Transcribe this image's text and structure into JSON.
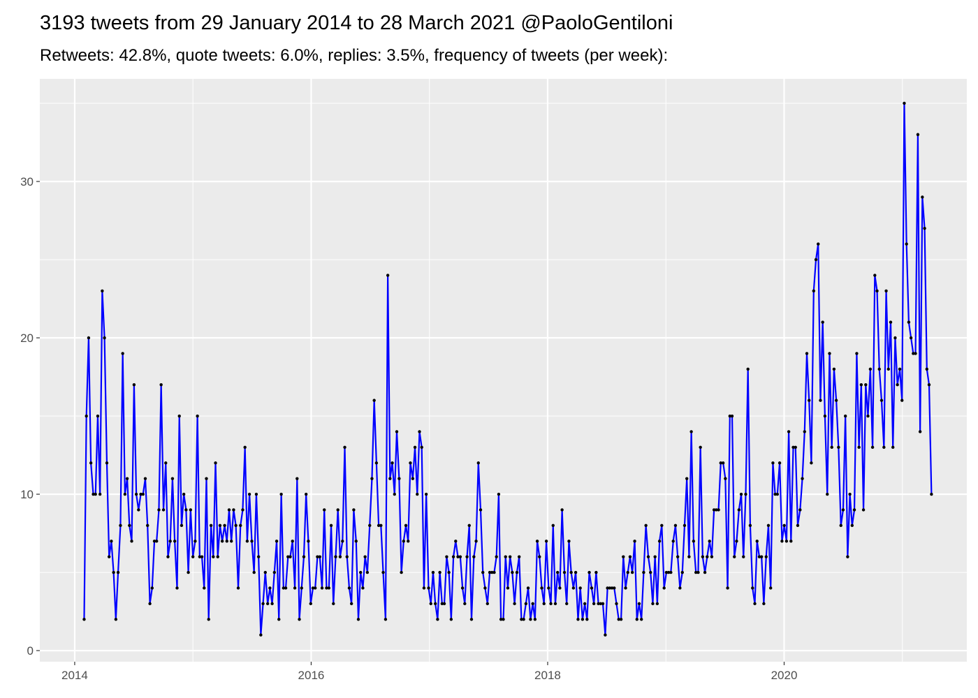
{
  "chart_data": {
    "type": "line",
    "title": "3193 tweets from 29 January 2014 to 28 March 2021 @PaoloGentiloni",
    "subtitle": "Retweets: 42.8%, quote tweets: 6.0%, replies: 3.5%, frequency of tweets (per week):",
    "color": "#0000ff",
    "point_color": "#000000",
    "grid": true,
    "xlim": [
      2013.705,
      2021.545
    ],
    "xticks": [
      2014,
      2016,
      2018,
      2020
    ],
    "minor_xticks": [
      2015,
      2017,
      2019,
      2021
    ],
    "ylim": [
      -0.71,
      36.56
    ],
    "yticks": [
      0,
      10,
      20,
      30
    ],
    "minor_yticks": [
      5,
      15,
      25,
      35
    ],
    "x": [
      2014.08,
      2014.099,
      2014.118,
      2014.137,
      2014.157,
      2014.176,
      2014.195,
      2014.214,
      2014.233,
      2014.252,
      2014.272,
      2014.291,
      2014.31,
      2014.329,
      2014.348,
      2014.367,
      2014.387,
      2014.406,
      2014.425,
      2014.444,
      2014.463,
      2014.482,
      2014.502,
      2014.521,
      2014.54,
      2014.559,
      2014.578,
      2014.597,
      2014.616,
      2014.636,
      2014.655,
      2014.674,
      2014.693,
      2014.712,
      2014.731,
      2014.751,
      2014.77,
      2014.789,
      2014.808,
      2014.827,
      2014.846,
      2014.866,
      2014.885,
      2014.904,
      2014.923,
      2014.942,
      2014.961,
      2014.98,
      2015.0,
      2015.019,
      2015.038,
      2015.057,
      2015.076,
      2015.095,
      2015.114,
      2015.133,
      2015.153,
      2015.172,
      2015.191,
      2015.21,
      2015.229,
      2015.248,
      2015.268,
      2015.287,
      2015.306,
      2015.325,
      2015.344,
      2015.363,
      2015.383,
      2015.402,
      2015.421,
      2015.44,
      2015.459,
      2015.478,
      2015.498,
      2015.517,
      2015.536,
      2015.555,
      2015.574,
      2015.593,
      2015.612,
      2015.632,
      2015.651,
      2015.67,
      2015.689,
      2015.708,
      2015.727,
      2015.747,
      2015.766,
      2015.785,
      2015.804,
      2015.823,
      2015.842,
      2015.862,
      2015.881,
      2015.9,
      2015.919,
      2015.938,
      2015.957,
      2015.976,
      2015.996,
      2016.015,
      2016.034,
      2016.053,
      2016.073,
      2016.092,
      2016.111,
      2016.13,
      2016.15,
      2016.169,
      2016.188,
      2016.207,
      2016.226,
      2016.245,
      2016.265,
      2016.284,
      2016.303,
      2016.322,
      2016.341,
      2016.36,
      2016.38,
      2016.399,
      2016.418,
      2016.437,
      2016.456,
      2016.475,
      2016.495,
      2016.514,
      2016.533,
      2016.552,
      2016.571,
      2016.59,
      2016.609,
      2016.629,
      2016.648,
      2016.667,
      2016.686,
      2016.705,
      2016.724,
      2016.744,
      2016.763,
      2016.782,
      2016.801,
      2016.82,
      2016.839,
      2016.859,
      2016.878,
      2016.897,
      2016.916,
      2016.935,
      2016.954,
      2016.973,
      2016.993,
      2017.012,
      2017.031,
      2017.05,
      2017.069,
      2017.088,
      2017.107,
      2017.126,
      2017.146,
      2017.165,
      2017.184,
      2017.203,
      2017.222,
      2017.241,
      2017.261,
      2017.28,
      2017.299,
      2017.318,
      2017.337,
      2017.356,
      2017.376,
      2017.395,
      2017.414,
      2017.433,
      2017.452,
      2017.471,
      2017.491,
      2017.51,
      2017.529,
      2017.548,
      2017.567,
      2017.586,
      2017.605,
      2017.625,
      2017.644,
      2017.663,
      2017.682,
      2017.701,
      2017.72,
      2017.74,
      2017.759,
      2017.778,
      2017.797,
      2017.816,
      2017.835,
      2017.855,
      2017.874,
      2017.893,
      2017.912,
      2017.931,
      2017.95,
      2017.969,
      2017.989,
      2018.008,
      2018.027,
      2018.046,
      2018.065,
      2018.084,
      2018.103,
      2018.122,
      2018.142,
      2018.161,
      2018.18,
      2018.199,
      2018.218,
      2018.237,
      2018.257,
      2018.276,
      2018.295,
      2018.314,
      2018.333,
      2018.352,
      2018.372,
      2018.391,
      2018.41,
      2018.429,
      2018.448,
      2018.467,
      2018.487,
      2018.506,
      2018.525,
      2018.544,
      2018.563,
      2018.582,
      2018.601,
      2018.621,
      2018.64,
      2018.659,
      2018.678,
      2018.697,
      2018.716,
      2018.736,
      2018.755,
      2018.774,
      2018.793,
      2018.812,
      2018.831,
      2018.851,
      2018.87,
      2018.889,
      2018.908,
      2018.927,
      2018.946,
      2018.965,
      2018.985,
      2019.004,
      2019.023,
      2019.042,
      2019.062,
      2019.081,
      2019.1,
      2019.119,
      2019.139,
      2019.158,
      2019.177,
      2019.196,
      2019.215,
      2019.234,
      2019.254,
      2019.273,
      2019.292,
      2019.311,
      2019.33,
      2019.349,
      2019.369,
      2019.388,
      2019.407,
      2019.426,
      2019.445,
      2019.464,
      2019.484,
      2019.503,
      2019.522,
      2019.541,
      2019.56,
      2019.579,
      2019.598,
      2019.618,
      2019.637,
      2019.656,
      2019.675,
      2019.694,
      2019.713,
      2019.733,
      2019.752,
      2019.771,
      2019.79,
      2019.809,
      2019.828,
      2019.848,
      2019.867,
      2019.886,
      2019.905,
      2019.924,
      2019.943,
      2019.962,
      2019.982,
      2020.001,
      2020.02,
      2020.039,
      2020.058,
      2020.077,
      2020.096,
      2020.115,
      2020.135,
      2020.154,
      2020.173,
      2020.192,
      2020.211,
      2020.23,
      2020.25,
      2020.269,
      2020.288,
      2020.307,
      2020.326,
      2020.345,
      2020.365,
      2020.384,
      2020.403,
      2020.422,
      2020.441,
      2020.46,
      2020.48,
      2020.499,
      2020.518,
      2020.537,
      2020.556,
      2020.575,
      2020.594,
      2020.614,
      2020.633,
      2020.652,
      2020.671,
      2020.69,
      2020.709,
      2020.729,
      2020.748,
      2020.767,
      2020.786,
      2020.805,
      2020.824,
      2020.844,
      2020.863,
      2020.882,
      2020.901,
      2020.92,
      2020.939,
      2020.958,
      2020.978,
      2020.997,
      2021.016,
      2021.035,
      2021.054,
      2021.073,
      2021.092,
      2021.111,
      2021.131,
      2021.15,
      2021.169,
      2021.188,
      2021.207,
      2021.226,
      2021.246
    ],
    "values": [
      2,
      15,
      20,
      12,
      10,
      10,
      15,
      10,
      23,
      20,
      12,
      6,
      7,
      5,
      2,
      5,
      8,
      19,
      10,
      11,
      8,
      7,
      17,
      10,
      9,
      10,
      10,
      11,
      8,
      3,
      4,
      7,
      7,
      9,
      17,
      9,
      12,
      6,
      7,
      11,
      7,
      4,
      15,
      8,
      10,
      9,
      5,
      9,
      6,
      7,
      15,
      6,
      6,
      4,
      11,
      2,
      8,
      6,
      12,
      6,
      8,
      7,
      8,
      7,
      9,
      7,
      9,
      8,
      4,
      8,
      9,
      13,
      7,
      10,
      7,
      5,
      10,
      6,
      1,
      3,
      5,
      3,
      4,
      3,
      5,
      7,
      2,
      10,
      4,
      4,
      6,
      6,
      7,
      4,
      11,
      2,
      4,
      6,
      10,
      7,
      3,
      4,
      4,
      6,
      6,
      4,
      9,
      4,
      4,
      8,
      3,
      6,
      9,
      6,
      7,
      13,
      6,
      4,
      3,
      9,
      7,
      2,
      5,
      4,
      6,
      5,
      8,
      11,
      16,
      12,
      8,
      8,
      5,
      2,
      24,
      11,
      12,
      10,
      14,
      11,
      5,
      7,
      8,
      7,
      12,
      11,
      13,
      10,
      14,
      13,
      4,
      10,
      4,
      3,
      5,
      3,
      2,
      5,
      3,
      3,
      6,
      5,
      2,
      6,
      7,
      6,
      6,
      4,
      3,
      6,
      8,
      2,
      6,
      7,
      12,
      9,
      5,
      4,
      3,
      5,
      5,
      5,
      6,
      10,
      2,
      2,
      6,
      4,
      6,
      5,
      3,
      5,
      6,
      2,
      2,
      3,
      4,
      2,
      3,
      2,
      7,
      6,
      4,
      3,
      7,
      4,
      3,
      8,
      3,
      5,
      4,
      9,
      5,
      3,
      7,
      5,
      4,
      5,
      2,
      4,
      2,
      3,
      2,
      5,
      4,
      3,
      5,
      3,
      3,
      3,
      1,
      4,
      4,
      4,
      4,
      3,
      2,
      2,
      6,
      4,
      5,
      6,
      5,
      7,
      2,
      3,
      2,
      5,
      8,
      6,
      5,
      3,
      6,
      3,
      7,
      8,
      4,
      5,
      5,
      5,
      7,
      8,
      6,
      4,
      5,
      8,
      11,
      6,
      14,
      7,
      5,
      5,
      13,
      6,
      5,
      6,
      7,
      6,
      9,
      9,
      9,
      12,
      12,
      11,
      4,
      15,
      15,
      6,
      7,
      9,
      10,
      6,
      10,
      18,
      8,
      4,
      3,
      7,
      6,
      6,
      3,
      6,
      8,
      4,
      12,
      10,
      10,
      12,
      7,
      8,
      7,
      14,
      7,
      13,
      13,
      8,
      9,
      11,
      14,
      19,
      16,
      12,
      23,
      25,
      26,
      16,
      21,
      15,
      10,
      19,
      13,
      18,
      16,
      13,
      8,
      9,
      15,
      6,
      10,
      8,
      9,
      19,
      13,
      17,
      9,
      17,
      15,
      18,
      13,
      24,
      23,
      18,
      16,
      13,
      23,
      18,
      21,
      13,
      20,
      17,
      18,
      16,
      35,
      26,
      21,
      20,
      19,
      19,
      33,
      14,
      29,
      27,
      18,
      17,
      10
    ]
  }
}
